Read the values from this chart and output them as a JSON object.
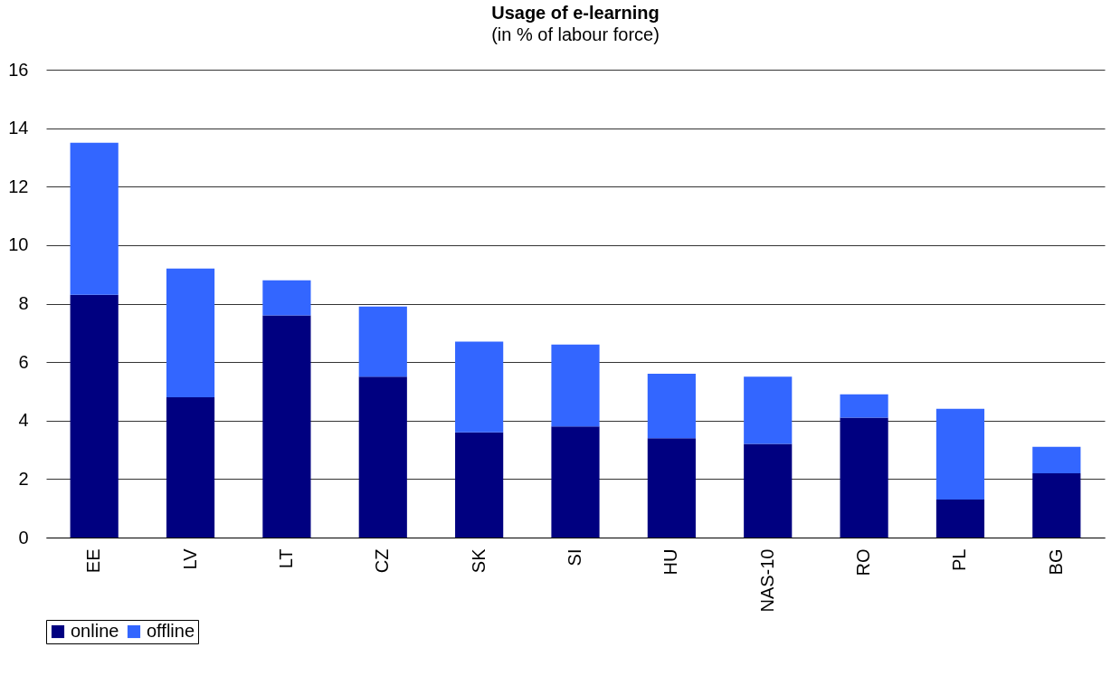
{
  "chart_data": {
    "type": "bar",
    "title": "Usage of e-learning",
    "subtitle": "(in % of labour force)",
    "stacked": true,
    "categories": [
      "EE",
      "LV",
      "LT",
      "CZ",
      "SK",
      "SI",
      "HU",
      "NAS-10",
      "RO",
      "PL",
      "BG"
    ],
    "series": [
      {
        "name": "online",
        "color": "#000080",
        "values": [
          8.3,
          4.8,
          7.6,
          5.5,
          3.6,
          3.8,
          3.4,
          3.2,
          4.1,
          1.3,
          2.2
        ]
      },
      {
        "name": "offline",
        "color": "#3366ff",
        "values": [
          5.2,
          4.4,
          1.2,
          2.4,
          3.1,
          2.8,
          2.2,
          2.3,
          0.8,
          3.1,
          0.9
        ]
      }
    ],
    "ylim": [
      0,
      16
    ],
    "yticks": [
      0,
      2,
      4,
      6,
      8,
      10,
      12,
      14,
      16
    ],
    "grid": "y",
    "legend": "bottom"
  }
}
